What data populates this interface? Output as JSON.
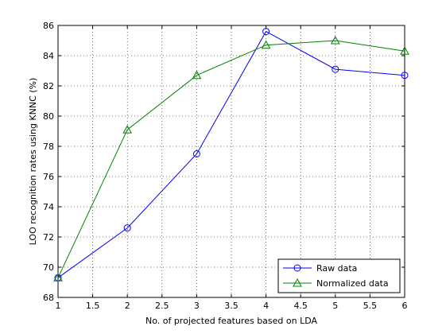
{
  "chart_data": {
    "type": "line",
    "xlabel": "No. of projected features based on LDA",
    "ylabel": "LOO recognition rates using KNNC (%)",
    "xlim": [
      1,
      6
    ],
    "ylim": [
      68,
      86
    ],
    "x_ticks": [
      1,
      1.5,
      2,
      2.5,
      3,
      3.5,
      4,
      4.5,
      5,
      5.5,
      6
    ],
    "x_tick_labels": [
      "1",
      "1.5",
      "2",
      "2.5",
      "3",
      "3.5",
      "4",
      "4.5",
      "5",
      "5.5",
      "6"
    ],
    "y_ticks": [
      68,
      70,
      72,
      74,
      76,
      78,
      80,
      82,
      84,
      86
    ],
    "y_tick_labels": [
      "68",
      "70",
      "72",
      "74",
      "76",
      "78",
      "80",
      "82",
      "84",
      "86"
    ],
    "grid": true,
    "legend_position": "bottom-right",
    "x": [
      1,
      2,
      3,
      4,
      5,
      6
    ],
    "series": [
      {
        "name": "Raw data",
        "values": [
          69.3,
          72.6,
          77.5,
          85.6,
          83.1,
          82.7
        ],
        "color": "#0000ff",
        "marker": "circle"
      },
      {
        "name": "Normalized data",
        "values": [
          69.3,
          79.1,
          82.7,
          84.7,
          85.0,
          84.3
        ],
        "color": "#008000",
        "marker": "triangle"
      }
    ]
  }
}
